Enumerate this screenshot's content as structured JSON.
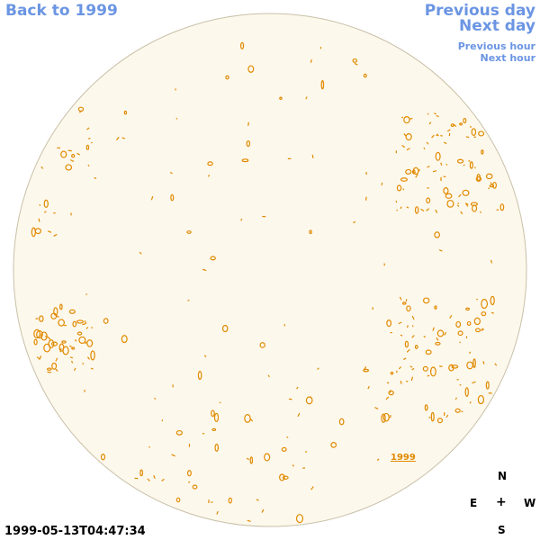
{
  "nav": {
    "back": "Back to 1999",
    "previous_day": "Previous day",
    "next_day": "Next day",
    "previous_hour": "Previous hour",
    "next_hour": "Next hour"
  },
  "timestamp": "1999-05-13T04:47:34",
  "year_label": "1999",
  "compass": {
    "n": "N",
    "e": "E",
    "plus": "+",
    "w": "W",
    "s": "S"
  },
  "colors": {
    "disk_fill": "#fdf8ec",
    "disk_edge": "#c8c0a8",
    "contour": "#e08a00",
    "link": "#6b95e3"
  }
}
